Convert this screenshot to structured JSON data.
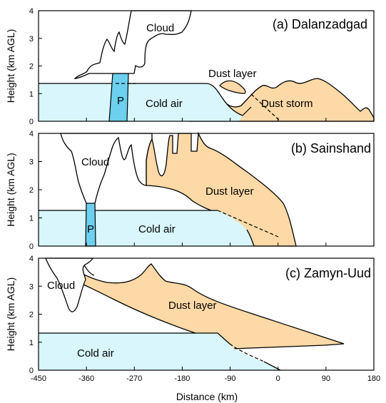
{
  "panels": [
    {
      "title": "(a) Dalanzadgad",
      "labels": [
        "Cloud",
        "Dust layer",
        "P",
        "Cold air",
        "Dust storm"
      ],
      "y_axis_label": "Height (km AGL)",
      "yticks": [
        "0",
        "1",
        "2",
        "3",
        "4"
      ]
    },
    {
      "title": "(b) Sainshand",
      "labels": [
        "Cloud",
        "Dust layer",
        "P",
        "Cold air"
      ],
      "y_axis_label": "Height (km AGL)",
      "yticks": [
        "0",
        "1",
        "2",
        "3",
        "4"
      ]
    },
    {
      "title": "(c) Zamyn-Uud",
      "labels": [
        "Cloud",
        "Dust layer",
        "Cold air"
      ],
      "y_axis_label": "Height (km AGL)",
      "yticks": [
        "0",
        "1",
        "2",
        "3",
        "4"
      ]
    }
  ],
  "x_axis": {
    "label": "Distance (km)",
    "ticks": [
      "-450",
      "-360",
      "-270",
      "-180",
      "-90",
      "0",
      "90",
      "180"
    ]
  }
}
